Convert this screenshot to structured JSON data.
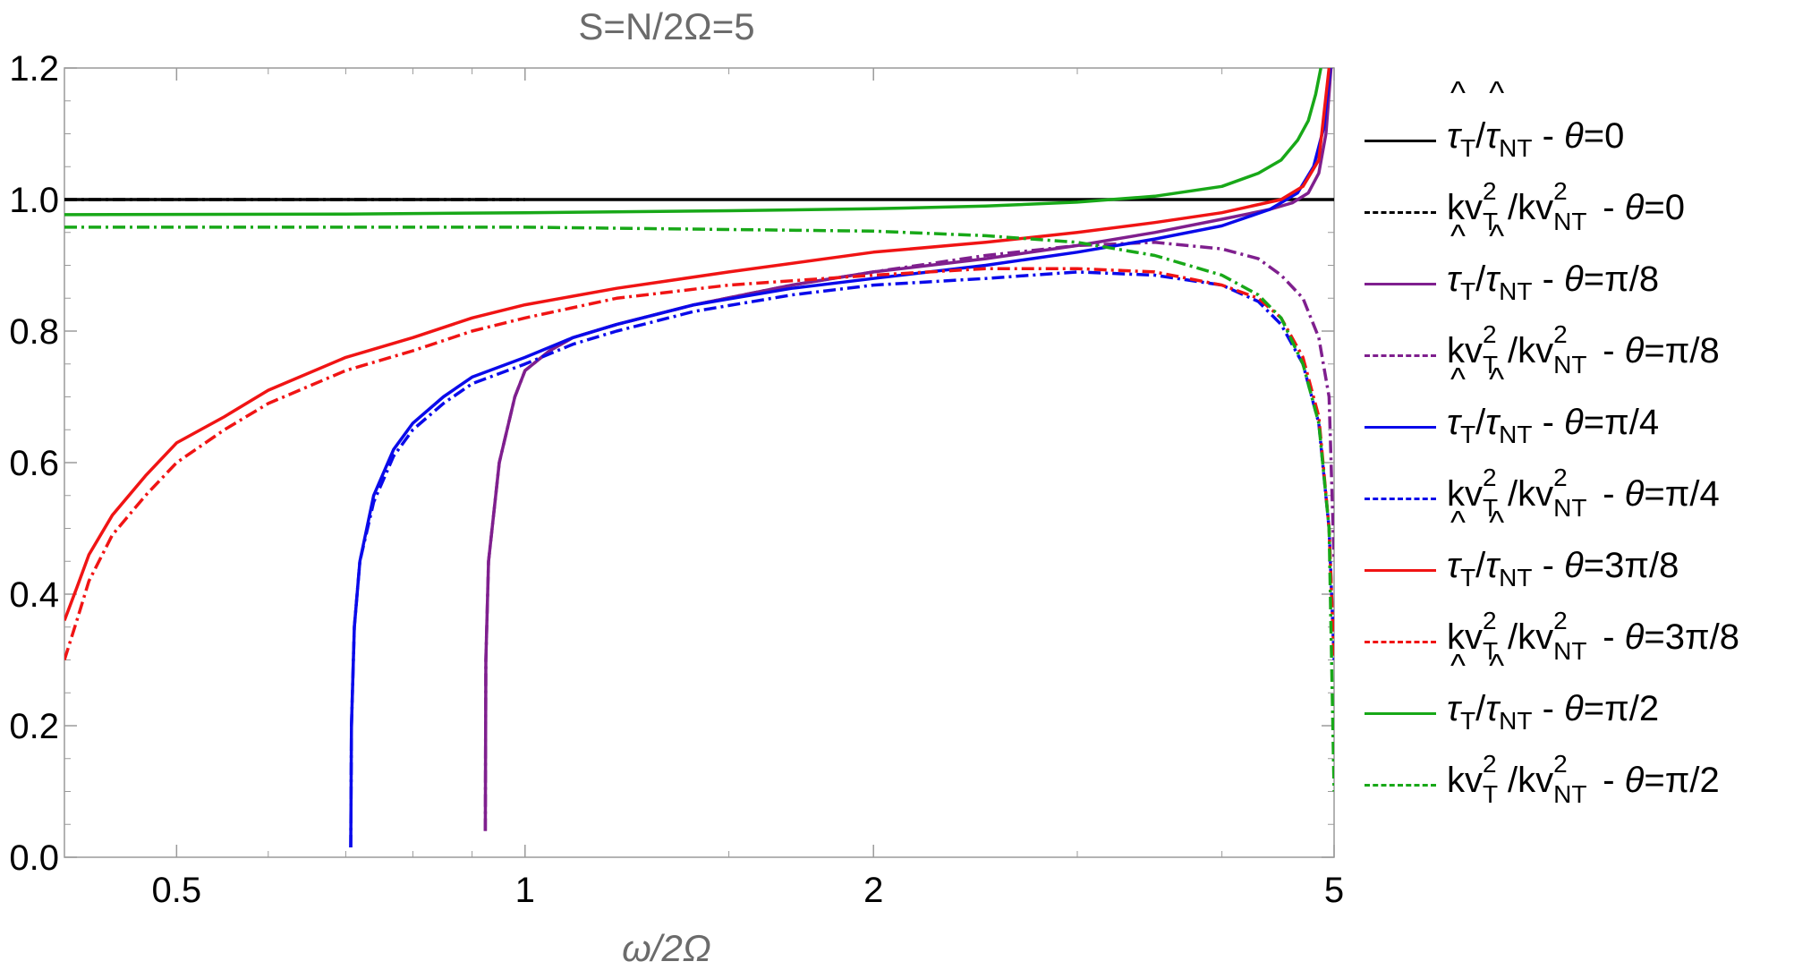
{
  "chart_data": {
    "type": "line",
    "title": "S=N/2Ω=5",
    "xlabel": "ω/2Ω",
    "ylabel": "",
    "xscale": "log",
    "xlim": [
      0.4,
      5.0
    ],
    "ylim": [
      0.0,
      1.2
    ],
    "xticks": [
      0.5,
      1,
      2,
      5
    ],
    "xtick_labels": [
      "0.5",
      "1",
      "2",
      "5"
    ],
    "yticks": [
      0.0,
      0.2,
      0.4,
      0.6,
      0.8,
      1.0,
      1.2
    ],
    "ytick_labels": [
      "0.0",
      "0.2",
      "0.4",
      "0.6",
      "0.8",
      "1.0",
      "1.2"
    ],
    "grid": false,
    "legend_position": "right",
    "series": [
      {
        "key": "tau_0",
        "quantity": "τ̂T/τ̂NT",
        "theta": "0",
        "color": "#000000",
        "dash": "solid",
        "x": [
          0.4,
          1.0,
          2.0,
          4.0,
          5.0
        ],
        "y": [
          1.0,
          1.0,
          1.0,
          1.0,
          1.0
        ]
      },
      {
        "key": "kv_0",
        "quantity": "kv²T/kv²NT",
        "theta": "0",
        "color": "#000000",
        "dash": "dashdot",
        "x": [
          0.4,
          0.7,
          1.0
        ],
        "y": [
          1.0,
          1.0,
          1.0
        ]
      },
      {
        "key": "tau_pi8",
        "quantity": "τ̂T/τ̂NT",
        "theta": "π/8",
        "color": "#7f1f8e",
        "dash": "solid",
        "x": [
          0.924,
          0.925,
          0.93,
          0.95,
          0.98,
          1.0,
          1.05,
          1.1,
          1.2,
          1.4,
          1.7,
          2.0,
          2.5,
          3.0,
          3.5,
          4.0,
          4.4,
          4.6,
          4.75,
          4.85,
          4.92,
          4.97
        ],
        "y": [
          0.04,
          0.3,
          0.45,
          0.6,
          0.7,
          0.74,
          0.77,
          0.79,
          0.81,
          0.84,
          0.87,
          0.89,
          0.91,
          0.93,
          0.95,
          0.97,
          0.985,
          0.995,
          1.01,
          1.04,
          1.1,
          1.2
        ]
      },
      {
        "key": "kv_pi8",
        "quantity": "kv²T/kv²NT",
        "theta": "π/8",
        "color": "#7f1f8e",
        "dash": "dashdot",
        "x": [
          0.924,
          0.925,
          0.93,
          0.95,
          0.98,
          1.0,
          1.05,
          1.1,
          1.2,
          1.4,
          1.7,
          2.0,
          2.5,
          3.0,
          3.5,
          4.0,
          4.3,
          4.5,
          4.7,
          4.85,
          4.95,
          5.0
        ],
        "y": [
          0.04,
          0.3,
          0.45,
          0.6,
          0.7,
          0.74,
          0.77,
          0.79,
          0.81,
          0.84,
          0.87,
          0.89,
          0.915,
          0.93,
          0.935,
          0.925,
          0.91,
          0.885,
          0.85,
          0.79,
          0.7,
          0.45
        ]
      },
      {
        "key": "tau_pi4",
        "quantity": "τ̂T/τ̂NT",
        "theta": "π/4",
        "color": "#0a0aea",
        "dash": "solid",
        "x": [
          0.707,
          0.708,
          0.712,
          0.72,
          0.74,
          0.77,
          0.8,
          0.85,
          0.9,
          1.0,
          1.1,
          1.2,
          1.4,
          1.7,
          2.0,
          2.5,
          3.0,
          3.5,
          4.0,
          4.4,
          4.65,
          4.8,
          4.9,
          4.96
        ],
        "y": [
          0.015,
          0.2,
          0.35,
          0.45,
          0.55,
          0.62,
          0.66,
          0.7,
          0.73,
          0.76,
          0.79,
          0.81,
          0.84,
          0.865,
          0.88,
          0.9,
          0.92,
          0.94,
          0.96,
          0.985,
          1.01,
          1.05,
          1.11,
          1.2
        ]
      },
      {
        "key": "kv_pi4",
        "quantity": "kv²T/kv²NT",
        "theta": "π/4",
        "color": "#0a0aea",
        "dash": "dashdot",
        "x": [
          0.707,
          0.708,
          0.712,
          0.72,
          0.74,
          0.77,
          0.8,
          0.85,
          0.9,
          1.0,
          1.1,
          1.2,
          1.4,
          1.7,
          2.0,
          2.5,
          3.0,
          3.5,
          4.0,
          4.3,
          4.5,
          4.7,
          4.85,
          4.95,
          5.0
        ],
        "y": [
          0.015,
          0.2,
          0.35,
          0.45,
          0.54,
          0.61,
          0.65,
          0.69,
          0.72,
          0.75,
          0.78,
          0.8,
          0.83,
          0.855,
          0.87,
          0.88,
          0.89,
          0.885,
          0.87,
          0.845,
          0.81,
          0.75,
          0.66,
          0.5,
          0.3
        ]
      },
      {
        "key": "tau_3pi8",
        "quantity": "τ̂T/τ̂NT",
        "theta": "3π/8",
        "color": "#f01414",
        "dash": "solid",
        "x": [
          0.4,
          0.41,
          0.42,
          0.44,
          0.47,
          0.5,
          0.55,
          0.6,
          0.7,
          0.8,
          0.9,
          1.0,
          1.2,
          1.5,
          2.0,
          2.5,
          3.0,
          3.5,
          4.0,
          4.5,
          4.7,
          4.85,
          4.95
        ],
        "y": [
          0.36,
          0.41,
          0.46,
          0.52,
          0.58,
          0.63,
          0.67,
          0.71,
          0.76,
          0.79,
          0.82,
          0.84,
          0.865,
          0.89,
          0.92,
          0.935,
          0.95,
          0.965,
          0.98,
          1.0,
          1.02,
          1.06,
          1.2
        ]
      },
      {
        "key": "kv_3pi8",
        "quantity": "kv²T/kv²NT",
        "theta": "3π/8",
        "color": "#f01414",
        "dash": "dashdot",
        "x": [
          0.4,
          0.41,
          0.42,
          0.44,
          0.47,
          0.5,
          0.55,
          0.6,
          0.7,
          0.8,
          0.9,
          1.0,
          1.2,
          1.5,
          2.0,
          2.5,
          3.0,
          3.5,
          4.0,
          4.3,
          4.5,
          4.7,
          4.85,
          4.95,
          5.0
        ],
        "y": [
          0.3,
          0.36,
          0.42,
          0.49,
          0.55,
          0.6,
          0.65,
          0.69,
          0.74,
          0.77,
          0.8,
          0.82,
          0.85,
          0.87,
          0.885,
          0.895,
          0.895,
          0.89,
          0.87,
          0.85,
          0.82,
          0.76,
          0.67,
          0.5,
          0.3
        ]
      },
      {
        "key": "tau_pi2",
        "quantity": "τ̂T/τ̂NT",
        "theta": "π/2",
        "color": "#18a818",
        "dash": "solid",
        "x": [
          0.4,
          0.7,
          1.0,
          1.5,
          2.0,
          2.5,
          3.0,
          3.5,
          4.0,
          4.3,
          4.5,
          4.65,
          4.75,
          4.82,
          4.87
        ],
        "y": [
          0.977,
          0.978,
          0.98,
          0.983,
          0.986,
          0.99,
          0.996,
          1.005,
          1.02,
          1.04,
          1.06,
          1.09,
          1.12,
          1.16,
          1.2
        ]
      },
      {
        "key": "kv_pi2",
        "quantity": "kv²T/kv²NT",
        "theta": "π/2",
        "color": "#18a818",
        "dash": "dashdot",
        "x": [
          0.4,
          1.0,
          2.0,
          2.5,
          3.0,
          3.5,
          4.0,
          4.3,
          4.5,
          4.7,
          4.85,
          4.95,
          5.0
        ],
        "y": [
          0.958,
          0.958,
          0.952,
          0.945,
          0.935,
          0.915,
          0.885,
          0.855,
          0.82,
          0.75,
          0.66,
          0.5,
          0.1
        ]
      }
    ]
  },
  "legend": [
    {
      "series": "tau_0",
      "q": "tau",
      "theta": "0"
    },
    {
      "series": "kv_0",
      "q": "kv",
      "theta": "0"
    },
    {
      "series": "tau_pi8",
      "q": "tau",
      "theta": "π/8"
    },
    {
      "series": "kv_pi8",
      "q": "kv",
      "theta": "π/8"
    },
    {
      "series": "tau_pi4",
      "q": "tau",
      "theta": "π/4"
    },
    {
      "series": "kv_pi4",
      "q": "kv",
      "theta": "π/4"
    },
    {
      "series": "tau_3pi8",
      "q": "tau",
      "theta": "3π/8"
    },
    {
      "series": "kv_3pi8",
      "q": "kv",
      "theta": "3π/8"
    },
    {
      "series": "tau_pi2",
      "q": "tau",
      "theta": "π/2"
    },
    {
      "series": "kv_pi2",
      "q": "kv",
      "theta": "π/2"
    }
  ],
  "legend_text": {
    "tau": "τ",
    "hat": "^",
    "slash": "/",
    "sub_t": "T",
    "sub_nt": "NT",
    "kv": "kv",
    "sup2": "2",
    "sep": " - ",
    "theta_sym": "θ",
    "eq": "="
  }
}
